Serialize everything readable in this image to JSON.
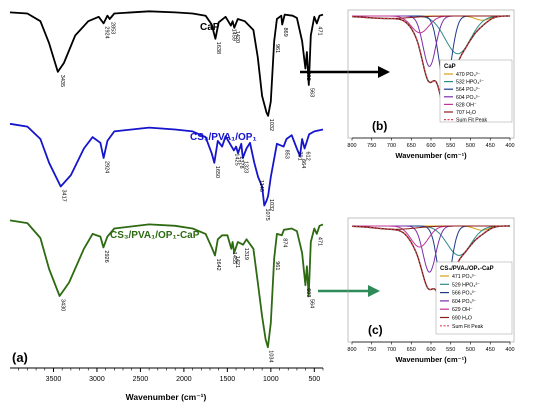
{
  "figure": {
    "panel_a_label": "(a)",
    "panel_b_label": "(b)",
    "panel_c_label": "(c)",
    "arrow_colors": [
      "#000000",
      "#2e8b57"
    ]
  },
  "chart_data": [
    {
      "type": "line",
      "panel": "(a)",
      "xlabel": "Wavenumber (cm⁻¹)",
      "xlim": [
        4000,
        400
      ],
      "x_ticks": [
        3500,
        3000,
        2500,
        2000,
        1500,
        1000,
        500
      ],
      "series": [
        {
          "name": "CaP",
          "color": "#000000",
          "points": [
            [
              4000,
              0.96
            ],
            [
              3800,
              0.95
            ],
            [
              3650,
              0.88
            ],
            [
              3550,
              0.68
            ],
            [
              3450,
              0.42
            ],
            [
              3380,
              0.5
            ],
            [
              3250,
              0.75
            ],
            [
              3100,
              0.88
            ],
            [
              2980,
              0.92
            ],
            [
              2924,
              0.86
            ],
            [
              2880,
              0.93
            ],
            [
              2853,
              0.9
            ],
            [
              2800,
              0.95
            ],
            [
              2400,
              0.97
            ],
            [
              2100,
              0.96
            ],
            [
              1900,
              0.95
            ],
            [
              1750,
              0.93
            ],
            [
              1680,
              0.85
            ],
            [
              1638,
              0.72
            ],
            [
              1600,
              0.87
            ],
            [
              1520,
              0.92
            ],
            [
              1459,
              0.84
            ],
            [
              1440,
              0.88
            ],
            [
              1420,
              0.82
            ],
            [
              1380,
              0.9
            ],
            [
              1300,
              0.88
            ],
            [
              1200,
              0.8
            ],
            [
              1150,
              0.55
            ],
            [
              1100,
              0.2
            ],
            [
              1050,
              0.05
            ],
            [
              1032,
              0.02
            ],
            [
              1000,
              0.15
            ],
            [
              961,
              0.7
            ],
            [
              930,
              0.9
            ],
            [
              880,
              0.93
            ],
            [
              869,
              0.85
            ],
            [
              840,
              0.94
            ],
            [
              750,
              0.93
            ],
            [
              700,
              0.91
            ],
            [
              640,
              0.7
            ],
            [
              602,
              0.45
            ],
            [
              585,
              0.6
            ],
            [
              563,
              0.3
            ],
            [
              540,
              0.75
            ],
            [
              500,
              0.92
            ],
            [
              471,
              0.86
            ],
            [
              440,
              0.93
            ],
            [
              400,
              0.94
            ]
          ],
          "annotations": [
            {
              "x": 3435,
              "text": "3435"
            },
            {
              "x": 2924,
              "text": "2924"
            },
            {
              "x": 2853,
              "text": "2853"
            },
            {
              "x": 1638,
              "text": "1638"
            },
            {
              "x": 1459,
              "text": "1459"
            },
            {
              "x": 1420,
              "text": "1420"
            },
            {
              "x": 1032,
              "text": "1032"
            },
            {
              "x": 961,
              "text": "961"
            },
            {
              "x": 869,
              "text": "869"
            },
            {
              "x": 602,
              "text": "602"
            },
            {
              "x": 563,
              "text": "563"
            },
            {
              "x": 471,
              "text": "471"
            }
          ]
        },
        {
          "name": "CS₃/PVA₁/OP₁",
          "color": "#1515cc",
          "points": [
            [
              4000,
              0.96
            ],
            [
              3800,
              0.93
            ],
            [
              3650,
              0.8
            ],
            [
              3550,
              0.55
            ],
            [
              3417,
              0.3
            ],
            [
              3300,
              0.42
            ],
            [
              3150,
              0.7
            ],
            [
              3050,
              0.82
            ],
            [
              2960,
              0.76
            ],
            [
              2924,
              0.6
            ],
            [
              2880,
              0.78
            ],
            [
              2800,
              0.88
            ],
            [
              2400,
              0.92
            ],
            [
              2100,
              0.9
            ],
            [
              1900,
              0.88
            ],
            [
              1750,
              0.82
            ],
            [
              1680,
              0.65
            ],
            [
              1650,
              0.55
            ],
            [
              1610,
              0.78
            ],
            [
              1560,
              0.72
            ],
            [
              1520,
              0.83
            ],
            [
              1470,
              0.75
            ],
            [
              1425,
              0.68
            ],
            [
              1400,
              0.72
            ],
            [
              1378,
              0.65
            ],
            [
              1340,
              0.75
            ],
            [
              1323,
              0.6
            ],
            [
              1280,
              0.7
            ],
            [
              1240,
              0.76
            ],
            [
              1190,
              0.55
            ],
            [
              1146,
              0.4
            ],
            [
              1100,
              0.3
            ],
            [
              1075,
              0.1
            ],
            [
              1050,
              0.15
            ],
            [
              1032,
              0.2
            ],
            [
              1000,
              0.4
            ],
            [
              960,
              0.6
            ],
            [
              930,
              0.75
            ],
            [
              853,
              0.72
            ],
            [
              820,
              0.8
            ],
            [
              760,
              0.84
            ],
            [
              701,
              0.7
            ],
            [
              664,
              0.62
            ],
            [
              640,
              0.8
            ],
            [
              612,
              0.7
            ],
            [
              560,
              0.85
            ],
            [
              500,
              0.88
            ],
            [
              400,
              0.9
            ]
          ],
          "annotations": [
            {
              "x": 3417,
              "text": "3417"
            },
            {
              "x": 2924,
              "text": "2924"
            },
            {
              "x": 1650,
              "text": "1650"
            },
            {
              "x": 1425,
              "text": "1425"
            },
            {
              "x": 1378,
              "text": "1378"
            },
            {
              "x": 1323,
              "text": "1323"
            },
            {
              "x": 1146,
              "text": "1146"
            },
            {
              "x": 1075,
              "text": "1075"
            },
            {
              "x": 1032,
              "text": "1032"
            },
            {
              "x": 853,
              "text": "853"
            },
            {
              "x": 701,
              "text": "701"
            },
            {
              "x": 664,
              "text": "664"
            },
            {
              "x": 612,
              "text": "612"
            }
          ]
        },
        {
          "name": "CS₃/PVA₁/OP₁-CaP",
          "color": "#2d6a12",
          "points": [
            [
              4000,
              0.96
            ],
            [
              3800,
              0.94
            ],
            [
              3650,
              0.83
            ],
            [
              3550,
              0.6
            ],
            [
              3430,
              0.4
            ],
            [
              3320,
              0.5
            ],
            [
              3150,
              0.75
            ],
            [
              3050,
              0.86
            ],
            [
              2960,
              0.84
            ],
            [
              2926,
              0.76
            ],
            [
              2880,
              0.84
            ],
            [
              2800,
              0.9
            ],
            [
              2400,
              0.93
            ],
            [
              2100,
              0.92
            ],
            [
              1900,
              0.9
            ],
            [
              1750,
              0.86
            ],
            [
              1680,
              0.76
            ],
            [
              1642,
              0.7
            ],
            [
              1610,
              0.82
            ],
            [
              1560,
              0.85
            ],
            [
              1500,
              0.85
            ],
            [
              1455,
              0.75
            ],
            [
              1440,
              0.8
            ],
            [
              1421,
              0.72
            ],
            [
              1380,
              0.8
            ],
            [
              1319,
              0.78
            ],
            [
              1280,
              0.82
            ],
            [
              1200,
              0.75
            ],
            [
              1150,
              0.5
            ],
            [
              1100,
              0.25
            ],
            [
              1060,
              0.08
            ],
            [
              1034,
              0.02
            ],
            [
              1000,
              0.2
            ],
            [
              961,
              0.68
            ],
            [
              930,
              0.86
            ],
            [
              874,
              0.85
            ],
            [
              850,
              0.89
            ],
            [
              760,
              0.9
            ],
            [
              700,
              0.88
            ],
            [
              640,
              0.72
            ],
            [
              603,
              0.48
            ],
            [
              585,
              0.62
            ],
            [
              564,
              0.4
            ],
            [
              540,
              0.8
            ],
            [
              500,
              0.9
            ],
            [
              471,
              0.86
            ],
            [
              440,
              0.92
            ],
            [
              400,
              0.93
            ]
          ],
          "annotations": [
            {
              "x": 3430,
              "text": "3430"
            },
            {
              "x": 2926,
              "text": "2926"
            },
            {
              "x": 1642,
              "text": "1642"
            },
            {
              "x": 1455,
              "text": "1455"
            },
            {
              "x": 1421,
              "text": "1421"
            },
            {
              "x": 1319,
              "text": "1319"
            },
            {
              "x": 1034,
              "text": "1034"
            },
            {
              "x": 961,
              "text": "961"
            },
            {
              "x": 874,
              "text": "874"
            },
            {
              "x": 603,
              "text": "603"
            },
            {
              "x": 564,
              "text": "564"
            },
            {
              "x": 471,
              "text": "471"
            }
          ]
        }
      ]
    },
    {
      "type": "line",
      "panel": "(b)",
      "xlabel": "Wavenumber (cm⁻¹)",
      "xlim": [
        800,
        400
      ],
      "x_ticks": [
        800,
        750,
        700,
        650,
        600,
        550,
        500,
        450,
        400
      ],
      "legend_title": "CaP",
      "legend_position": "bottom-right",
      "series": [
        {
          "name": "470  PO₄³⁻",
          "color": "#d4a017",
          "center": 470,
          "depth": 0.05,
          "width": 18
        },
        {
          "name": "532  HPO₄²⁻",
          "color": "#2e8b8b",
          "center": 532,
          "depth": 0.45,
          "width": 32
        },
        {
          "name": "564  PO₄³⁻",
          "color": "#1e3a8a",
          "center": 564,
          "depth": 0.85,
          "width": 16
        },
        {
          "name": "604  PO₄³⁻",
          "color": "#7b2fa8",
          "center": 604,
          "depth": 0.6,
          "width": 16
        },
        {
          "name": "628  OH⁻",
          "color": "#c0359a",
          "center": 628,
          "depth": 0.2,
          "width": 22
        },
        {
          "name": "707  H₂O",
          "color": "#8b1a1a",
          "center": 707,
          "depth": 0.03,
          "width": 55
        },
        {
          "name": "Sum Fit Peak",
          "color": "#e0405a",
          "dashed": true,
          "sum": true
        }
      ]
    },
    {
      "type": "line",
      "panel": "(c)",
      "xlabel": "Wavenumber (cm⁻¹)",
      "xlim": [
        800,
        400
      ],
      "x_ticks": [
        800,
        750,
        700,
        650,
        600,
        550,
        500,
        450,
        400
      ],
      "legend_title": "CS₃/PVA₁/OP₁-CaP",
      "legend_position": "bottom-right",
      "series": [
        {
          "name": "471  PO₄³⁻",
          "color": "#d4a017",
          "center": 471,
          "depth": 0.05,
          "width": 18
        },
        {
          "name": "529  HPO₄²⁻",
          "color": "#2e8b8b",
          "center": 529,
          "depth": 0.35,
          "width": 30
        },
        {
          "name": "566  PO₄³⁻",
          "color": "#1e3a8a",
          "center": 566,
          "depth": 0.85,
          "width": 16
        },
        {
          "name": "604  PO₄³⁻",
          "color": "#7b2fa8",
          "center": 604,
          "depth": 0.55,
          "width": 16
        },
        {
          "name": "629  OH⁻",
          "color": "#c0359a",
          "center": 629,
          "depth": 0.25,
          "width": 22
        },
        {
          "name": "690  H₂O",
          "color": "#8b1a1a",
          "center": 690,
          "depth": 0.04,
          "width": 50
        },
        {
          "name": "Sum Fit Peak",
          "color": "#e0405a",
          "dashed": true,
          "sum": true
        }
      ]
    }
  ]
}
